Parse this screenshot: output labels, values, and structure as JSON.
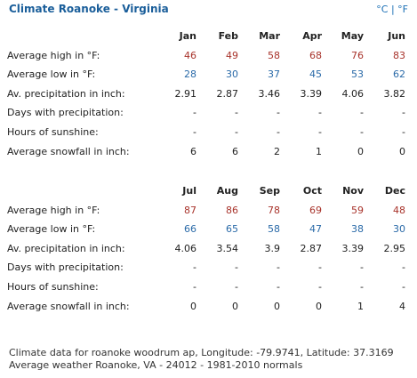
{
  "header": {
    "title": "Climate Roanoke - Virginia",
    "unit_celsius": "°C",
    "unit_separator": "|",
    "unit_fahrenheit": "°F"
  },
  "row_labels": {
    "high": "Average high in °F:",
    "low": "Average low in °F:",
    "precip": "Av. precipitation in inch:",
    "days_precip": "Days with precipitation:",
    "sunshine": "Hours of sunshine:",
    "snowfall": "Average snowfall in inch:"
  },
  "tables": [
    {
      "months": [
        "Jan",
        "Feb",
        "Mar",
        "Apr",
        "May",
        "Jun"
      ],
      "high": [
        "46",
        "49",
        "58",
        "68",
        "76",
        "83"
      ],
      "low": [
        "28",
        "30",
        "37",
        "45",
        "53",
        "62"
      ],
      "precip": [
        "2.91",
        "2.87",
        "3.46",
        "3.39",
        "4.06",
        "3.82"
      ],
      "days_precip": [
        "-",
        "-",
        "-",
        "-",
        "-",
        "-"
      ],
      "sunshine": [
        "-",
        "-",
        "-",
        "-",
        "-",
        "-"
      ],
      "snowfall": [
        "6",
        "6",
        "2",
        "1",
        "0",
        "0"
      ]
    },
    {
      "months": [
        "Jul",
        "Aug",
        "Sep",
        "Oct",
        "Nov",
        "Dec"
      ],
      "high": [
        "87",
        "86",
        "78",
        "69",
        "59",
        "48"
      ],
      "low": [
        "66",
        "65",
        "58",
        "47",
        "38",
        "30"
      ],
      "precip": [
        "4.06",
        "3.54",
        "3.9",
        "2.87",
        "3.39",
        "2.95"
      ],
      "days_precip": [
        "-",
        "-",
        "-",
        "-",
        "-",
        "-"
      ],
      "sunshine": [
        "-",
        "-",
        "-",
        "-",
        "-",
        "-"
      ],
      "snowfall": [
        "0",
        "0",
        "0",
        "0",
        "1",
        "4"
      ]
    }
  ],
  "footer": {
    "line1": "Climate data for roanoke woodrum ap, Longitude: -79.9741, Latitude: 37.3169",
    "line2": "Average weather Roanoke, VA - 24012 - 1981-2010 normals"
  },
  "colors": {
    "title": "#1a5e9a",
    "units": "#1a6fb5",
    "high_values": "#a8332b",
    "low_values": "#2a6aa8"
  }
}
